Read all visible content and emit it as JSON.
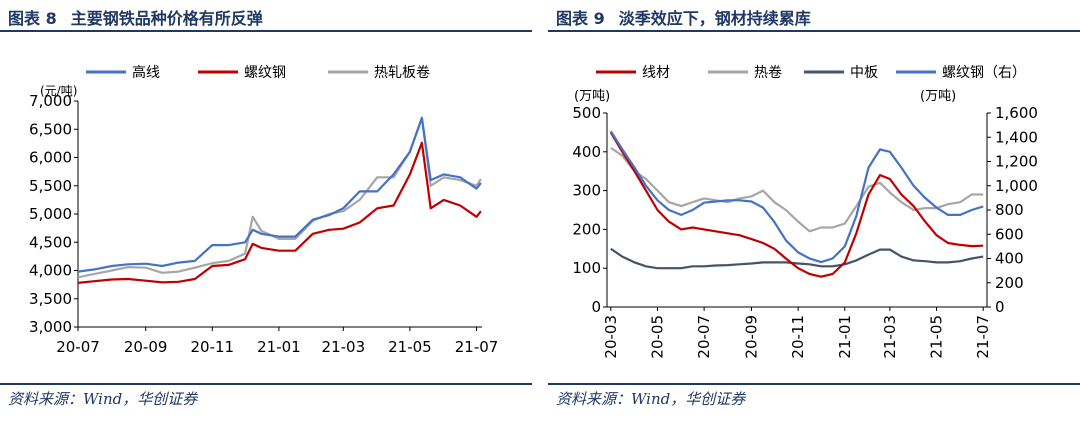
{
  "figures": [
    {
      "number": "图表 8",
      "title": "主要钢铁品种价格有所反弹",
      "source": "资料来源：Wind，华创证券"
    },
    {
      "number": "图表 9",
      "title": "淡季效应下，钢材持续累库",
      "source": "资料来源：Wind，华创证券"
    }
  ],
  "chart_data": [
    {
      "type": "line",
      "unit_label": "(元/吨)",
      "x_ticks": [
        "20-07",
        "20-09",
        "20-11",
        "21-01",
        "21-03",
        "21-05",
        "21-07"
      ],
      "y_ticks": [
        "3,000",
        "3,500",
        "4,000",
        "4,500",
        "5,000",
        "5,500",
        "6,000",
        "6,500",
        "7,000"
      ],
      "ylim": [
        3000,
        7000
      ],
      "grid": false,
      "legend_position": "top",
      "x": [
        "2020-07-01",
        "2020-07-16",
        "2020-08-01",
        "2020-08-16",
        "2020-09-01",
        "2020-09-16",
        "2020-10-01",
        "2020-10-16",
        "2020-11-01",
        "2020-11-16",
        "2020-12-01",
        "2020-12-08",
        "2020-12-16",
        "2021-01-01",
        "2021-01-16",
        "2021-02-01",
        "2021-02-16",
        "2021-03-01",
        "2021-03-16",
        "2021-04-01",
        "2021-04-16",
        "2021-05-01",
        "2021-05-12",
        "2021-05-20",
        "2021-06-01",
        "2021-06-16",
        "2021-07-01",
        "2021-07-05"
      ],
      "series": [
        {
          "name": "高线",
          "color": "#4472c4",
          "values": [
            3980,
            4020,
            4080,
            4110,
            4120,
            4080,
            4140,
            4170,
            4450,
            4450,
            4500,
            4720,
            4650,
            4600,
            4600,
            4900,
            4980,
            5100,
            5400,
            5400,
            5700,
            6100,
            6700,
            5600,
            5700,
            5650,
            5450,
            5550
          ]
        },
        {
          "name": "螺纹钢",
          "color": "#c00000",
          "values": [
            3780,
            3810,
            3840,
            3850,
            3820,
            3790,
            3800,
            3850,
            4080,
            4100,
            4200,
            4470,
            4400,
            4350,
            4350,
            4650,
            4720,
            4740,
            4850,
            5100,
            5150,
            5700,
            6260,
            5100,
            5250,
            5150,
            4950,
            5050
          ]
        },
        {
          "name": "热轧板卷",
          "color": "#a6a6a6",
          "values": [
            3880,
            3940,
            4000,
            4060,
            4050,
            3960,
            3980,
            4050,
            4130,
            4170,
            4300,
            4950,
            4700,
            4560,
            4560,
            4880,
            5000,
            5050,
            5250,
            5650,
            5650,
            6100,
            6700,
            5500,
            5650,
            5600,
            5500,
            5620
          ]
        }
      ]
    },
    {
      "type": "line",
      "left_unit_label": "(万吨)",
      "right_unit_label": "(万吨)",
      "x_ticks": [
        "20-03",
        "20-05",
        "20-07",
        "20-09",
        "20-11",
        "21-01",
        "21-03",
        "21-05",
        "21-07"
      ],
      "y_ticks_left": [
        "0",
        "100",
        "200",
        "300",
        "400",
        "500"
      ],
      "y_ticks_right": [
        "0",
        "200",
        "400",
        "600",
        "800",
        "1,000",
        "1,200",
        "1,400",
        "1,600"
      ],
      "ylim_left": [
        0,
        500
      ],
      "ylim_right": [
        0,
        1600
      ],
      "grid": false,
      "legend_position": "top",
      "x": [
        "2020-03-01",
        "2020-03-16",
        "2020-04-01",
        "2020-04-16",
        "2020-05-01",
        "2020-05-16",
        "2020-06-01",
        "2020-06-16",
        "2020-07-01",
        "2020-07-16",
        "2020-08-01",
        "2020-08-16",
        "2020-09-01",
        "2020-09-16",
        "2020-10-01",
        "2020-10-16",
        "2020-11-01",
        "2020-11-16",
        "2020-12-01",
        "2020-12-16",
        "2021-01-01",
        "2021-01-16",
        "2021-02-01",
        "2021-02-16",
        "2021-03-01",
        "2021-03-16",
        "2021-04-01",
        "2021-04-16",
        "2021-05-01",
        "2021-05-16",
        "2021-06-01",
        "2021-06-16",
        "2021-07-01"
      ],
      "series": [
        {
          "name": "线材",
          "axis": "left",
          "color": "#c00000",
          "values": [
            450,
            400,
            350,
            300,
            250,
            220,
            200,
            205,
            200,
            195,
            190,
            185,
            175,
            165,
            150,
            125,
            100,
            85,
            78,
            85,
            115,
            190,
            290,
            340,
            330,
            290,
            260,
            220,
            185,
            165,
            160,
            157,
            158
          ]
        },
        {
          "name": "热卷",
          "axis": "left",
          "color": "#a6a6a6",
          "values": [
            410,
            390,
            350,
            330,
            300,
            270,
            260,
            270,
            280,
            275,
            270,
            280,
            285,
            300,
            270,
            250,
            220,
            195,
            205,
            205,
            215,
            260,
            310,
            320,
            295,
            270,
            250,
            255,
            255,
            265,
            270,
            290,
            290
          ]
        },
        {
          "name": "中板",
          "axis": "left",
          "color": "#44546a",
          "values": [
            150,
            130,
            115,
            105,
            100,
            100,
            100,
            105,
            105,
            107,
            108,
            110,
            112,
            115,
            115,
            115,
            112,
            110,
            105,
            105,
            110,
            120,
            135,
            148,
            148,
            130,
            120,
            118,
            115,
            115,
            118,
            125,
            130
          ]
        },
        {
          "name": "螺纹钢（右）",
          "axis": "right",
          "color": "#4472c4",
          "values": [
            1450,
            1300,
            1150,
            1000,
            880,
            800,
            760,
            800,
            860,
            870,
            880,
            880,
            870,
            820,
            700,
            550,
            450,
            400,
            370,
            400,
            500,
            750,
            1150,
            1300,
            1280,
            1150,
            1000,
            900,
            820,
            760,
            760,
            800,
            830
          ]
        }
      ]
    }
  ]
}
